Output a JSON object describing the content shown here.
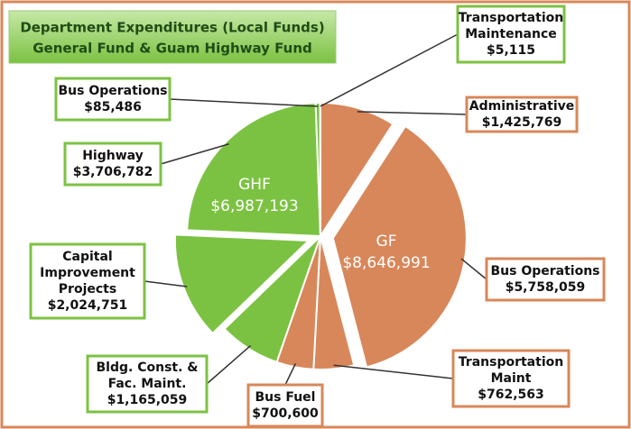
{
  "chart_data": {
    "type": "pie",
    "title": [
      "Department Expenditures (Local Funds)",
      "General Fund & Guam Highway Fund"
    ],
    "groups": [
      {
        "name": "GF",
        "total": 8646991,
        "total_label": "$8,646,991",
        "color": "#d8875a",
        "slices": [
          {
            "label": [
              "Administrative"
            ],
            "value": 1425769,
            "value_label": "$1,425,769"
          },
          {
            "label": [
              "Bus Operations"
            ],
            "value": 5758059,
            "value_label": "$5,758,059",
            "exploded": true
          },
          {
            "label": [
              "Transportation",
              "Maint"
            ],
            "value": 762563,
            "value_label": "$762,563"
          },
          {
            "label": [
              "Bus Fuel"
            ],
            "value": 700600,
            "value_label": "$700,600"
          }
        ]
      },
      {
        "name": "GHF",
        "total": 6987193,
        "total_label": "$6,987,193",
        "color": "#7cc242",
        "slices": [
          {
            "label": [
              "Bldg. Const. &",
              "Fac. Maint."
            ],
            "value": 1165059,
            "value_label": "$1,165,059"
          },
          {
            "label": [
              "Capital",
              "Improvement",
              "Projects"
            ],
            "value": 2024751,
            "value_label": "$2,024,751",
            "exploded": true
          },
          {
            "label": [
              "Highway"
            ],
            "value": 3706782,
            "value_label": "$3,706,782"
          },
          {
            "label": [
              "Bus Operations"
            ],
            "value": 85486,
            "value_label": "$85,486"
          },
          {
            "label": [
              "Transportation",
              "Maintenance"
            ],
            "value": 5115,
            "value_label": "$5,115"
          }
        ]
      }
    ]
  }
}
